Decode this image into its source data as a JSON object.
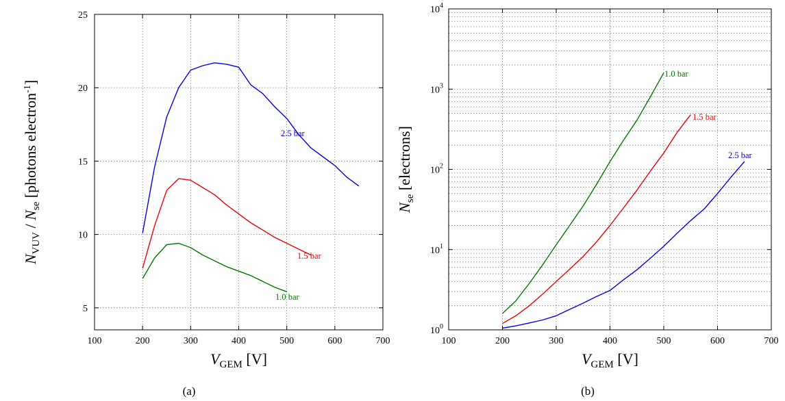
{
  "chart_data": [
    {
      "type": "line",
      "panel_caption": "(a)",
      "xlabel": {
        "main": "V",
        "sub": "GEM",
        "unit": " [V]"
      },
      "ylabel": {
        "n1": "N",
        "sub1": "VUV",
        "sep": " / ",
        "n2": "N",
        "sub2": "se",
        "unit": " [photons electron",
        "sup": "-1",
        "close": "]"
      },
      "xlim": [
        100,
        700
      ],
      "ylim": [
        3.5,
        25
      ],
      "log_y": false,
      "grid": true,
      "xticks": [
        100,
        200,
        300,
        400,
        500,
        600,
        700
      ],
      "yticks": [
        5,
        10,
        15,
        20,
        25
      ],
      "series": [
        {
          "name": "2.5 bar",
          "color": "#0000ee",
          "x": [
            200,
            225,
            250,
            275,
            300,
            325,
            350,
            375,
            400,
            425,
            450,
            475,
            500,
            525,
            550,
            575,
            600,
            625,
            650
          ],
          "y": [
            10.1,
            14.6,
            18.0,
            20.0,
            21.2,
            21.5,
            21.7,
            21.6,
            21.4,
            20.2,
            19.6,
            18.7,
            17.9,
            16.8,
            15.9,
            15.3,
            14.7,
            13.9,
            13.3
          ]
        },
        {
          "name": "1.5 bar",
          "color": "#ee0000",
          "x": [
            200,
            225,
            250,
            275,
            300,
            325,
            350,
            375,
            400,
            425,
            450,
            475,
            500,
            525,
            550
          ],
          "y": [
            7.7,
            10.6,
            13.0,
            13.8,
            13.7,
            13.2,
            12.7,
            12.0,
            11.4,
            10.8,
            10.3,
            9.8,
            9.4,
            9.0,
            8.6
          ]
        },
        {
          "name": "1.0 bar",
          "color": "#007700",
          "x": [
            200,
            225,
            250,
            275,
            300,
            325,
            350,
            375,
            400,
            425,
            450,
            475,
            500
          ],
          "y": [
            7.0,
            8.4,
            9.3,
            9.4,
            9.1,
            8.6,
            8.2,
            7.8,
            7.5,
            7.2,
            6.8,
            6.4,
            6.1
          ]
        }
      ]
    },
    {
      "type": "line",
      "panel_caption": "(b)",
      "xlabel": {
        "main": "V",
        "sub": "GEM",
        "unit": " [V]"
      },
      "ylabel": {
        "n1": "N",
        "sub1": "se",
        "unit": " [electrons]"
      },
      "xlim": [
        100,
        700
      ],
      "ylim": [
        1,
        10000
      ],
      "log_y": true,
      "grid": true,
      "xticks": [
        100,
        200,
        300,
        400,
        500,
        600,
        700
      ],
      "yticks": [
        {
          "base": "10",
          "exp": "0",
          "value": 1
        },
        {
          "base": "10",
          "exp": "1",
          "value": 10
        },
        {
          "base": "10",
          "exp": "2",
          "value": 100
        },
        {
          "base": "10",
          "exp": "3",
          "value": 1000
        },
        {
          "base": "10",
          "exp": "4",
          "value": 10000
        }
      ],
      "series": [
        {
          "name": "1.0 bar",
          "color": "#007700",
          "x": [
            200,
            225,
            250,
            275,
            300,
            325,
            350,
            375,
            400,
            425,
            450,
            475,
            500
          ],
          "y": [
            1.6,
            2.3,
            3.8,
            6.5,
            11.5,
            20,
            35,
            65,
            125,
            230,
            410,
            800,
            1600
          ]
        },
        {
          "name": "1.5 bar",
          "color": "#ee0000",
          "x": [
            200,
            225,
            250,
            275,
            300,
            325,
            350,
            375,
            400,
            425,
            450,
            475,
            500,
            525,
            550
          ],
          "y": [
            1.2,
            1.5,
            2.0,
            2.8,
            4.0,
            5.7,
            8.2,
            12.5,
            20,
            33,
            55,
            95,
            160,
            290,
            480
          ]
        },
        {
          "name": "2.5 bar",
          "color": "#0000ee",
          "x": [
            200,
            225,
            250,
            275,
            300,
            325,
            350,
            375,
            400,
            425,
            450,
            475,
            500,
            525,
            550,
            575,
            600,
            625,
            650
          ],
          "y": [
            1.05,
            1.12,
            1.22,
            1.33,
            1.5,
            1.8,
            2.15,
            2.6,
            3.1,
            4.2,
            5.6,
            7.8,
            11,
            16,
            23,
            32,
            50,
            80,
            125
          ]
        }
      ]
    }
  ]
}
